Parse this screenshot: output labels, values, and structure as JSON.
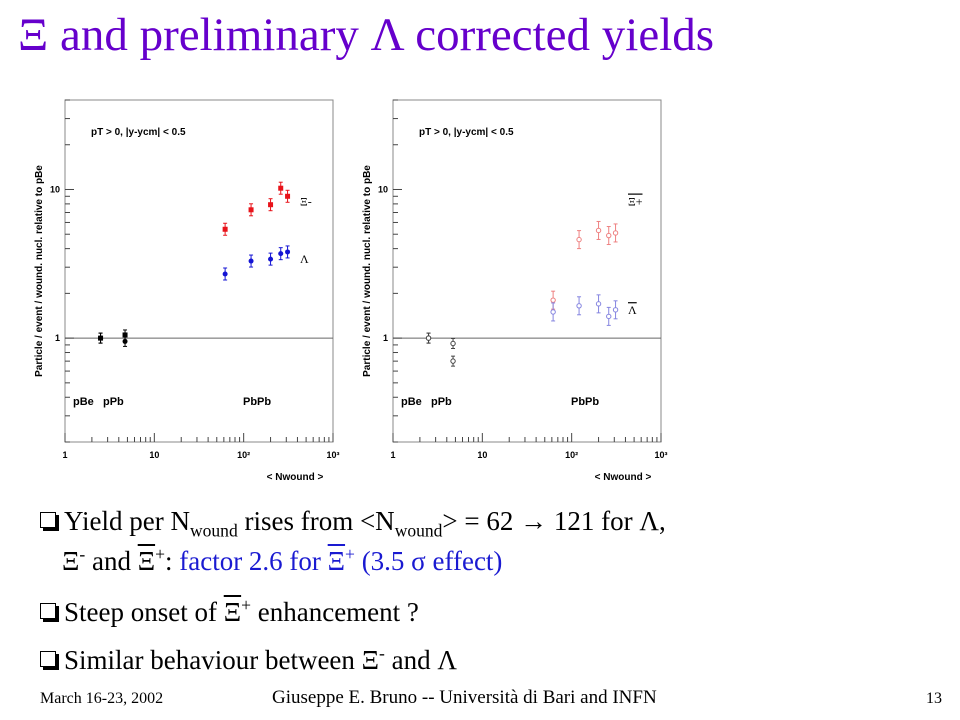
{
  "slide": {
    "title_prefix": "Ξ",
    "title_mid": " and preliminary ",
    "title_lambda": "Λ",
    "title_suffix": " corrected yields"
  },
  "plot_text": {
    "ylabel": "Particle / event / wound. nucl. relative to pBe",
    "cut_label": "pT > 0,  |y-ycm| < 0.5",
    "xlabel": "< Nwound >",
    "system_pbe": "pBe",
    "system_ppb": "pPb",
    "system_pbpb": "PbPb",
    "left_top_species": "Ξ-",
    "left_bottom_species": "Λ",
    "right_top_species": "Ξ+",
    "right_bottom_species": "Λ",
    "x_ticks": [
      "1",
      "10",
      "10²",
      "10³"
    ],
    "y_ticks": [
      "1",
      "10"
    ]
  },
  "chart_data": [
    {
      "type": "scatter",
      "panel": "left",
      "xlabel": "< Nwound >",
      "ylabel": "Particle / event / wound. nucl. relative to pBe",
      "xscale": "log",
      "yscale": "log",
      "xlim": [
        1,
        1000
      ],
      "ylim": [
        0.2,
        40
      ],
      "reference_line_y": 1,
      "series": [
        {
          "name": "Ξ-",
          "color": "#e8131a",
          "points": [
            {
              "x": 2.5,
              "y": 1.0
            },
            {
              "x": 4.7,
              "y": 1.05
            },
            {
              "x": 62,
              "y": 5.4
            },
            {
              "x": 121,
              "y": 7.3
            },
            {
              "x": 200,
              "y": 7.9
            },
            {
              "x": 260,
              "y": 10.2
            },
            {
              "x": 310,
              "y": 9.0
            }
          ]
        },
        {
          "name": "Λ",
          "color": "#1414d4",
          "points": [
            {
              "x": 2.5,
              "y": 1.0
            },
            {
              "x": 4.7,
              "y": 0.95
            },
            {
              "x": 62,
              "y": 2.7
            },
            {
              "x": 121,
              "y": 3.3
            },
            {
              "x": 200,
              "y": 3.4
            },
            {
              "x": 260,
              "y": 3.7
            },
            {
              "x": 310,
              "y": 3.8
            }
          ]
        }
      ]
    },
    {
      "type": "scatter",
      "panel": "right",
      "xlabel": "< Nwound >",
      "ylabel": "Particle / event / wound. nucl. relative to pBe",
      "xscale": "log",
      "yscale": "log",
      "xlim": [
        1,
        1000
      ],
      "ylim": [
        0.2,
        40
      ],
      "reference_line_y": 1,
      "series": [
        {
          "name": "Ξ+",
          "color": "#ee8080",
          "points": [
            {
              "x": 2.5,
              "y": 1.0
            },
            {
              "x": 4.7,
              "y": 0.92
            },
            {
              "x": 62,
              "y": 1.8
            },
            {
              "x": 121,
              "y": 4.6
            },
            {
              "x": 200,
              "y": 5.3
            },
            {
              "x": 260,
              "y": 4.9
            },
            {
              "x": 310,
              "y": 5.1
            }
          ]
        },
        {
          "name": "Λ",
          "color": "#8585e0",
          "points": [
            {
              "x": 2.5,
              "y": 1.0
            },
            {
              "x": 4.7,
              "y": 0.7
            },
            {
              "x": 62,
              "y": 1.5
            },
            {
              "x": 121,
              "y": 1.65
            },
            {
              "x": 200,
              "y": 1.7
            },
            {
              "x": 260,
              "y": 1.4
            },
            {
              "x": 310,
              "y": 1.55
            }
          ]
        }
      ]
    }
  ],
  "bullets": {
    "b1_line1": {
      "t1": "Yield per N",
      "sub1": "wound",
      "t2": " rises from ",
      "lt": "<N",
      "sub2": "wound",
      "gt": "> = 62 ",
      "arrow": "→",
      "t3": " 121 for Λ,"
    },
    "b1_line2": {
      "xi": "Ξ",
      "xi_sup": "-",
      "and": " and ",
      "xibar": "Ξ",
      "xibar_sup": "+",
      "colon": ": ",
      "factor": "factor 2.6 for ",
      "xibar2": "Ξ",
      "xibar2_sup": "+",
      "effect": " (3.5 σ effect)"
    },
    "b2": {
      "pre": "Steep onset of ",
      "xibar": "Ξ",
      "sup": "+",
      "post": " enhancement ?"
    },
    "b3": {
      "pre": "Similar behaviour between ",
      "xi": "Ξ",
      "sup": "-",
      "post": " and Λ"
    }
  },
  "footer": {
    "date": "March 16-23, 2002",
    "author": "Giuseppe E. Bruno  --  Università di Bari and INFN",
    "page": "13"
  },
  "colors": {
    "title": "#6600cc",
    "highlight": "#1a1ad1"
  }
}
